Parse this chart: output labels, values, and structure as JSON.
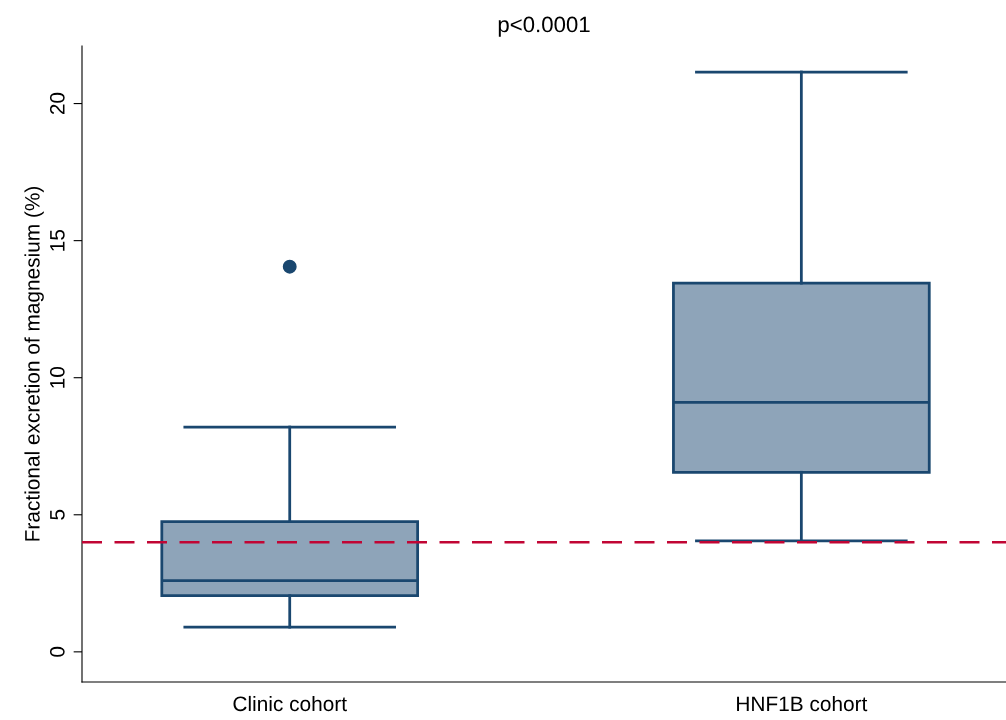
{
  "chart_data": {
    "type": "box",
    "title": "p<0.0001",
    "ylabel": "Fractional excretion of magnesium (%)",
    "categories": [
      "Clinic cohort",
      "HNF1B cohort"
    ],
    "series": [
      {
        "color": "#8ea4b9",
        "boxes": [
          {
            "low": 0.9,
            "q1": 2.05,
            "median": 2.6,
            "q3": 4.75,
            "high": 8.2,
            "outliers": [
              14.05
            ]
          },
          {
            "low": 4.05,
            "q1": 6.55,
            "median": 9.1,
            "q3": 13.45,
            "high": 21.15
          }
        ]
      }
    ],
    "ylim": [
      -1.1,
      22.1
    ],
    "yticks": [
      0,
      5,
      10,
      15,
      20
    ],
    "ref_lines": [
      {
        "axis": "y",
        "value": 4,
        "color": "#c10534",
        "line_style": "dashed"
      }
    ],
    "grid": false,
    "legend": false
  }
}
